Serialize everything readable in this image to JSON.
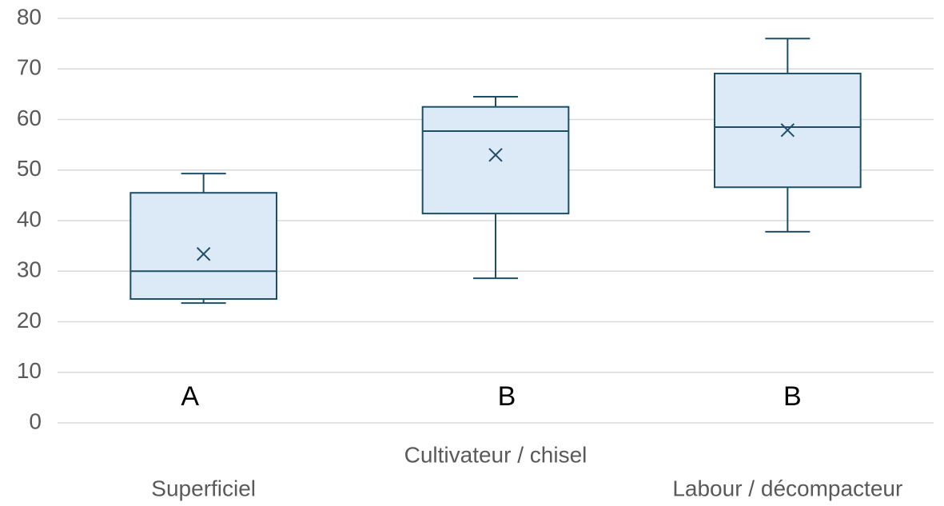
{
  "chart_data": {
    "type": "box",
    "categories": [
      "Superficiel",
      "Cultivateur / chisel",
      "Labour / décompacteur"
    ],
    "boxes": [
      {
        "min": 23.7,
        "q1": 24.5,
        "median": 30.0,
        "q3": 45.5,
        "max": 49.3,
        "mean": 33.4
      },
      {
        "min": 28.6,
        "q1": 41.4,
        "median": 57.7,
        "q3": 62.5,
        "max": 64.5,
        "mean": 53.0
      },
      {
        "min": 37.8,
        "q1": 46.6,
        "median": 58.5,
        "q3": 69.1,
        "max": 76.0,
        "mean": 57.9
      }
    ],
    "annotations": [
      "A",
      "B",
      "B"
    ],
    "color": "#dceaf7",
    "edge_color": "#1e4e66",
    "ylim": [
      0,
      80
    ],
    "yticks": [
      0,
      10,
      20,
      30,
      40,
      50,
      60,
      70,
      80
    ],
    "grid": true
  }
}
